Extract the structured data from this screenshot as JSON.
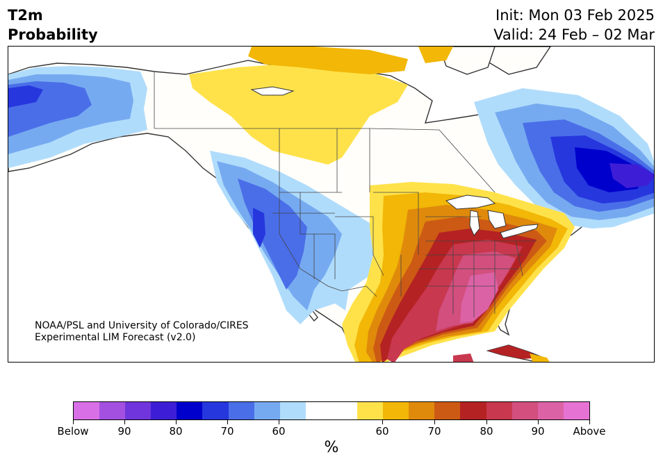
{
  "title": {
    "line1": "T2m",
    "line2": "Probability"
  },
  "header_right": {
    "init": "Init: Mon 03 Feb 2025",
    "valid": "Valid: 24 Feb – 02 Mar"
  },
  "credit": {
    "line1": "NOAA/PSL and University of Colorado/CIRES",
    "line2": "Experimental LIM Forecast (v2.0)"
  },
  "colorbar": {
    "colors": [
      "#d86fe6",
      "#a350e0",
      "#7035dc",
      "#3d1ed6",
      "#0000cc",
      "#2637de",
      "#4a6ee8",
      "#76aaf0",
      "#b0dcfc",
      "#ffffff",
      "#ffffff",
      "#ffe24a",
      "#f2b707",
      "#e08a0c",
      "#cc5a14",
      "#b52223",
      "#c8384e",
      "#d24f7e",
      "#dc62a6",
      "#e673d3"
    ],
    "tick_labels": [
      "Below",
      "90",
      "80",
      "70",
      "60",
      "60",
      "70",
      "80",
      "90",
      "Above"
    ],
    "unit": "%"
  },
  "map": {
    "land_fill": "#fffefa",
    "ocean_fill": "#ffffff",
    "border_color": "#333333"
  }
}
